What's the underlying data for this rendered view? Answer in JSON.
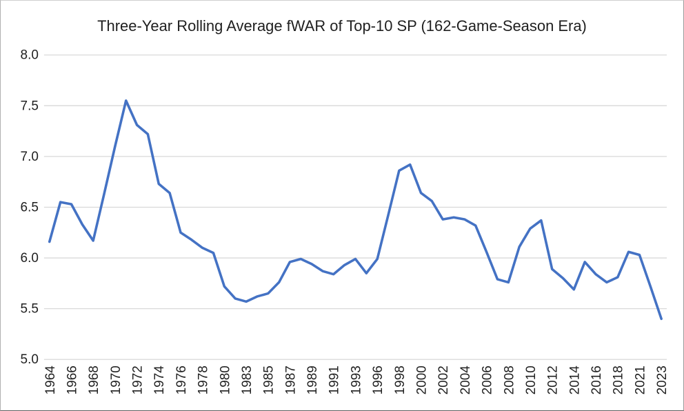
{
  "chart_data": {
    "type": "line",
    "title": "Three-Year Rolling Average fWAR of Top-10 SP (162-Game-Season Era)",
    "xlabel": "",
    "ylabel": "",
    "legend": "none",
    "grid": true,
    "ylim": [
      5.0,
      8.0
    ],
    "ytick_step": 0.5,
    "ytick_labels": [
      "8.0",
      "7.5",
      "7.0",
      "6.5",
      "6.0",
      "5.5",
      "5.0"
    ],
    "x": [
      "1964",
      "1965",
      "1966",
      "1967",
      "1968",
      "1969",
      "1970",
      "1971",
      "1972",
      "1973",
      "1974",
      "1975",
      "1976",
      "1977",
      "1978",
      "1979",
      "1980",
      "1982",
      "1983",
      "1984",
      "1985",
      "1986",
      "1987",
      "1988",
      "1989",
      "1990",
      "1991",
      "1992",
      "1993",
      "1995",
      "1996",
      "1997",
      "1998",
      "1999",
      "2000",
      "2001",
      "2002",
      "2003",
      "2004",
      "2005",
      "2006",
      "2007",
      "2008",
      "2009",
      "2010",
      "2011",
      "2012",
      "2013",
      "2014",
      "2015",
      "2016",
      "2017",
      "2018",
      "2019",
      "2021",
      "2022",
      "2023"
    ],
    "values": [
      6.16,
      6.55,
      6.53,
      6.33,
      6.17,
      6.63,
      7.1,
      7.55,
      7.31,
      7.22,
      6.73,
      6.64,
      6.25,
      6.18,
      6.1,
      6.05,
      5.72,
      5.6,
      5.57,
      5.62,
      5.65,
      5.76,
      5.96,
      5.99,
      5.94,
      5.87,
      5.84,
      5.93,
      5.99,
      5.85,
      5.99,
      6.42,
      6.86,
      6.92,
      6.64,
      6.56,
      6.38,
      6.4,
      6.38,
      6.32,
      6.06,
      5.79,
      5.76,
      6.11,
      6.29,
      6.37,
      5.89,
      5.8,
      5.69,
      5.96,
      5.84,
      5.76,
      5.81,
      6.06,
      6.03,
      5.72,
      5.4
    ],
    "xtick_labels": [
      "1964",
      "1966",
      "1968",
      "1970",
      "1972",
      "1974",
      "1976",
      "1978",
      "1980",
      "1983",
      "1985",
      "1987",
      "1989",
      "1991",
      "1993",
      "1996",
      "1998",
      "2000",
      "2002",
      "2004",
      "2006",
      "2008",
      "2010",
      "2012",
      "2014",
      "2016",
      "2018",
      "2021",
      "2023"
    ],
    "colors": {
      "line": "#4472C4",
      "gridline": "#D9D9D9",
      "text": "#1f1f1f",
      "background": "#FFFFFF"
    }
  }
}
